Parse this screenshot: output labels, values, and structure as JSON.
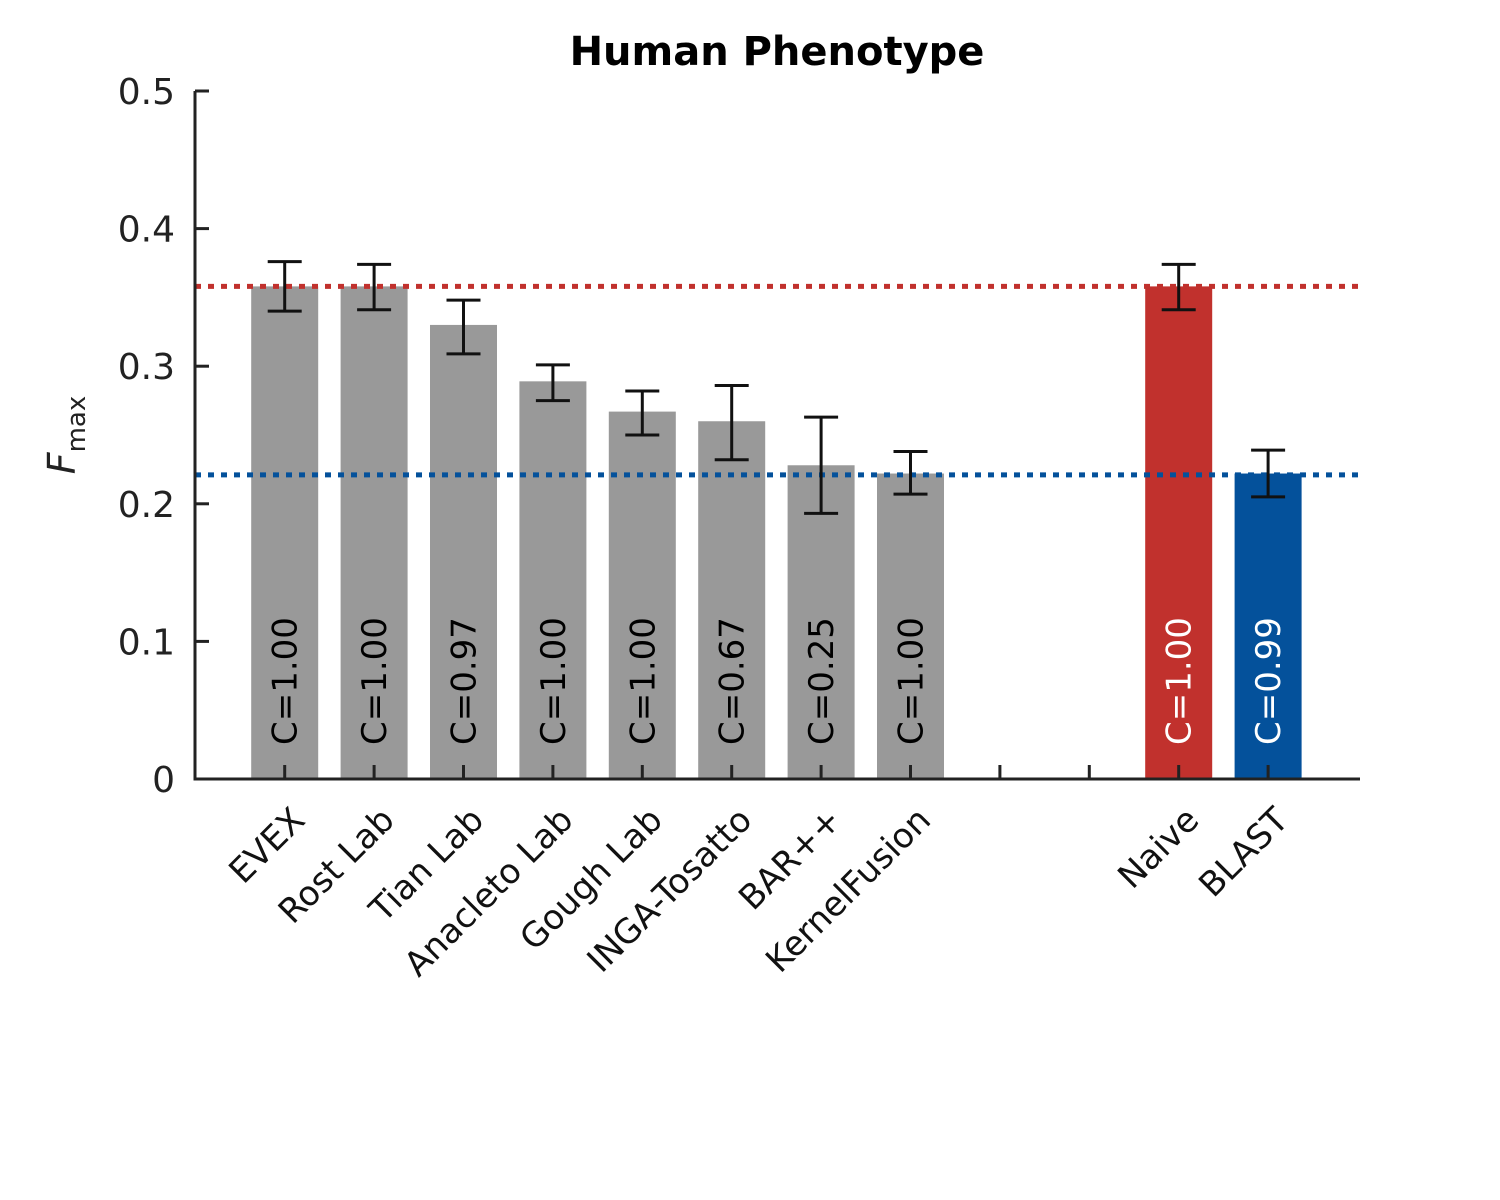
{
  "chart_data": {
    "type": "bar",
    "title": "Human Phenotype",
    "ylabel": "F",
    "ylabel_sub": "max",
    "xlabel": "",
    "ylim": [
      0,
      0.5
    ],
    "yticks": [
      0,
      0.1,
      0.2,
      0.3,
      0.4,
      0.5
    ],
    "ytick_labels": [
      "0",
      "0.1",
      "0.2",
      "0.3",
      "0.4",
      "0.5"
    ],
    "grid": false,
    "categories": [
      "EVEX",
      "Rost Lab",
      "Tian Lab",
      "Anacleto Lab",
      "Gough Lab",
      "INGA-Tosatto",
      "BAR++",
      "KernelFusion",
      "",
      "",
      "Naive",
      "BLAST"
    ],
    "values": [
      0.358,
      0.358,
      0.33,
      0.289,
      0.267,
      0.26,
      0.228,
      0.222,
      null,
      null,
      0.358,
      0.222
    ],
    "error_low": [
      0.34,
      0.341,
      0.309,
      0.275,
      0.25,
      0.232,
      0.193,
      0.207,
      null,
      null,
      0.341,
      0.205
    ],
    "error_high": [
      0.376,
      0.374,
      0.348,
      0.301,
      0.282,
      0.286,
      0.263,
      0.238,
      null,
      null,
      0.374,
      0.239
    ],
    "bar_labels": [
      "C=1.00",
      "C=1.00",
      "C=0.97",
      "C=1.00",
      "C=1.00",
      "C=0.67",
      "C=0.25",
      "C=1.00",
      "",
      "",
      "C=1.00",
      "C=0.99"
    ],
    "bar_colors": [
      "#999999",
      "#999999",
      "#999999",
      "#999999",
      "#999999",
      "#999999",
      "#999999",
      "#999999",
      "",
      "",
      "#c1312d",
      "#04519b"
    ],
    "bar_label_colors": [
      "#000000",
      "#000000",
      "#000000",
      "#000000",
      "#000000",
      "#000000",
      "#000000",
      "#000000",
      "",
      "",
      "#ffffff",
      "#ffffff"
    ],
    "reference_lines": [
      {
        "value": 0.358,
        "color": "#c1312d",
        "style": "dotted"
      },
      {
        "value": 0.221,
        "color": "#04519b",
        "style": "dotted"
      }
    ]
  }
}
